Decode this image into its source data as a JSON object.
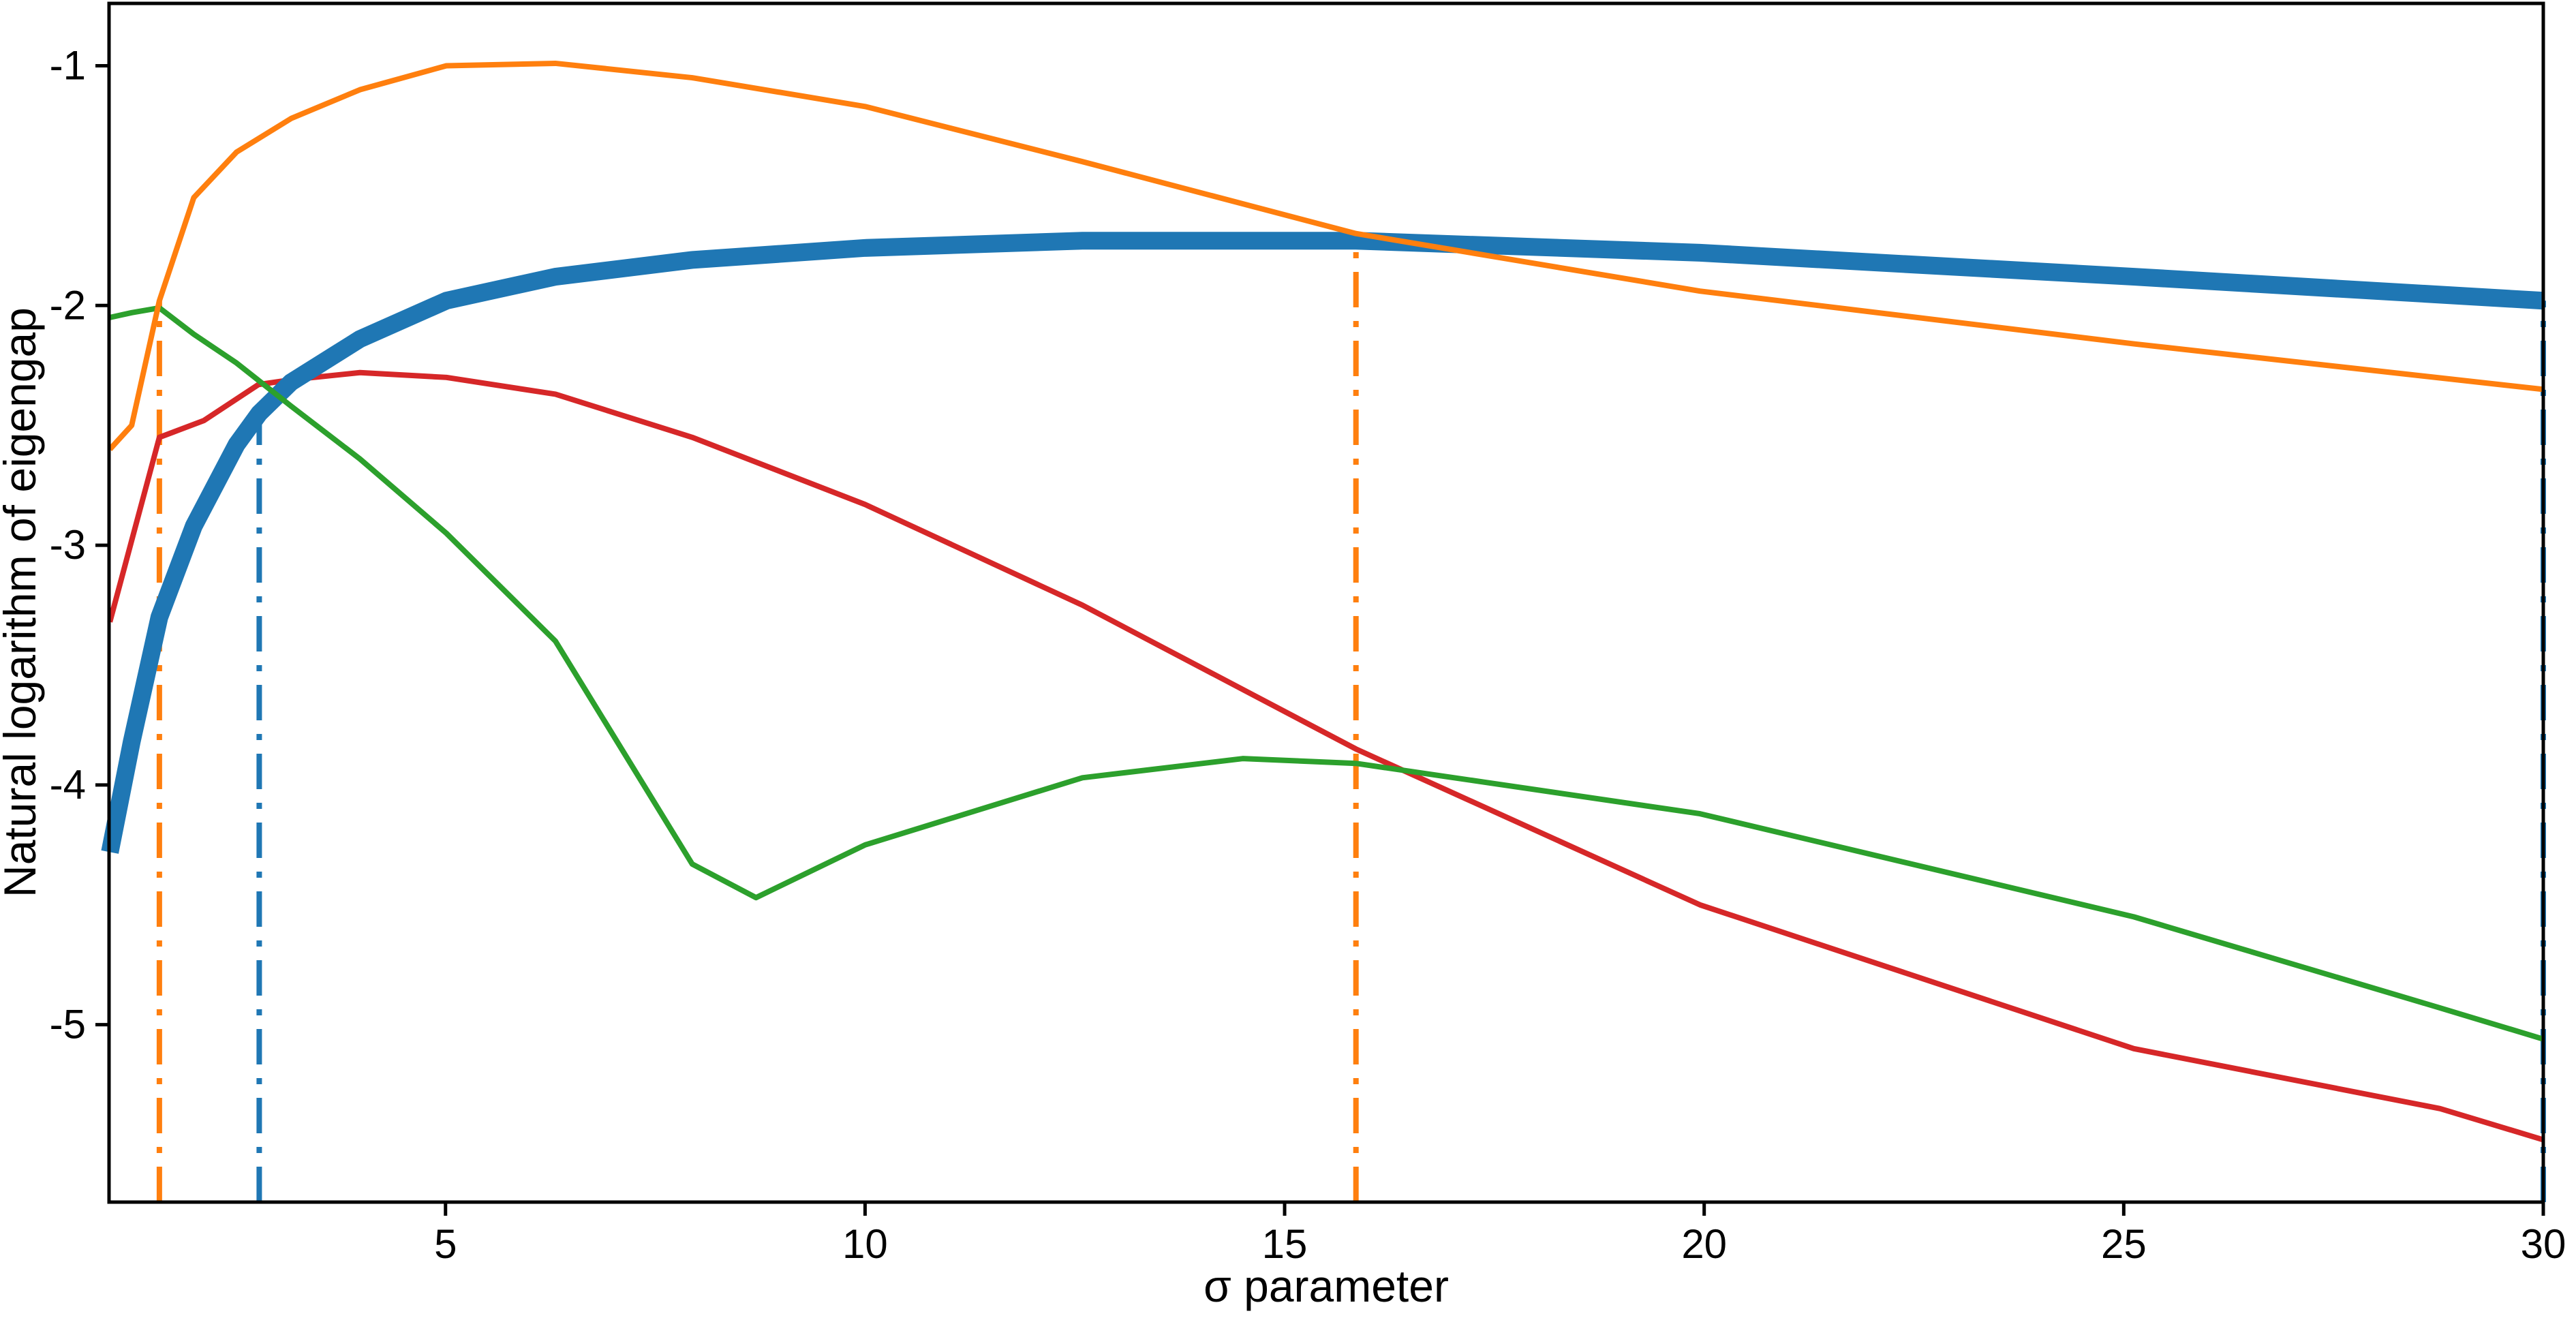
{
  "figure": {
    "background": "#ffffff",
    "spine_color": "#000000"
  },
  "chart_data": {
    "type": "line",
    "title": "",
    "xlabel": "σ parameter",
    "ylabel": "Natural logarithm of eigengap",
    "xlim": [
      0.99,
      30
    ],
    "ylim": [
      -5.74,
      -0.74
    ],
    "xticks": [
      5,
      10,
      15,
      20,
      25,
      30
    ],
    "yticks": [
      -1,
      -2,
      -3,
      -4,
      -5
    ],
    "xtick_labels": [
      "5",
      "10",
      "15",
      "20",
      "25",
      "30"
    ],
    "ytick_labels": [
      "-1",
      "-2",
      "-3",
      "-4",
      "-5"
    ],
    "grid": false,
    "legend_position": "none",
    "series": [
      {
        "name": "eigengap-curve-red",
        "color": "#d62728",
        "linewidth": 8,
        "points": [
          [
            1,
            -3.32
          ],
          [
            1.26,
            -2.98
          ],
          [
            1.59,
            -2.55
          ],
          [
            2.12,
            -2.48
          ],
          [
            2.77,
            -2.33
          ],
          [
            3.16,
            -2.31
          ],
          [
            3.98,
            -2.28
          ],
          [
            5.01,
            -2.3
          ],
          [
            6.31,
            -2.37
          ],
          [
            7.94,
            -2.55
          ],
          [
            10,
            -2.83
          ],
          [
            12.59,
            -3.25
          ],
          [
            15.85,
            -3.85
          ],
          [
            19.95,
            -4.5
          ],
          [
            25.12,
            -5.1
          ],
          [
            28.77,
            -5.35
          ],
          [
            30,
            -5.48
          ]
        ]
      },
      {
        "name": "eigengap-curve-blue-thick",
        "color": "#1f77b4",
        "linewidth": 26,
        "points": [
          [
            1,
            -4.28
          ],
          [
            1.26,
            -3.82
          ],
          [
            1.59,
            -3.3
          ],
          [
            2,
            -2.92
          ],
          [
            2.51,
            -2.58
          ],
          [
            2.78,
            -2.45
          ],
          [
            3.16,
            -2.32
          ],
          [
            3.98,
            -2.14
          ],
          [
            5.01,
            -1.98
          ],
          [
            6.31,
            -1.88
          ],
          [
            7.94,
            -1.81
          ],
          [
            10,
            -1.76
          ],
          [
            12.59,
            -1.73
          ],
          [
            15.85,
            -1.73
          ],
          [
            19.95,
            -1.78
          ],
          [
            25.12,
            -1.88
          ],
          [
            30,
            -1.98
          ]
        ]
      },
      {
        "name": "eigengap-curve-green",
        "color": "#2ca02c",
        "linewidth": 8,
        "points": [
          [
            1,
            -2.05
          ],
          [
            1.26,
            -2.03
          ],
          [
            1.59,
            -2.01
          ],
          [
            2,
            -2.12
          ],
          [
            2.51,
            -2.24
          ],
          [
            3.16,
            -2.42
          ],
          [
            3.98,
            -2.64
          ],
          [
            5.01,
            -2.95
          ],
          [
            6.31,
            -3.4
          ],
          [
            7.94,
            -4.33
          ],
          [
            8.7,
            -4.47
          ],
          [
            10,
            -4.25
          ],
          [
            12.59,
            -3.97
          ],
          [
            14.5,
            -3.89
          ],
          [
            15.85,
            -3.91
          ],
          [
            19.95,
            -4.12
          ],
          [
            25.12,
            -4.55
          ],
          [
            28.77,
            -4.93
          ],
          [
            30,
            -5.06
          ]
        ]
      },
      {
        "name": "eigengap-curve-orange",
        "color": "#ff7f0e",
        "linewidth": 8,
        "points": [
          [
            1,
            -2.6
          ],
          [
            1.26,
            -2.5
          ],
          [
            1.59,
            -1.98
          ],
          [
            2,
            -1.55
          ],
          [
            2.51,
            -1.36
          ],
          [
            3.16,
            -1.22
          ],
          [
            3.98,
            -1.1
          ],
          [
            5.01,
            -1.0
          ],
          [
            6.31,
            -0.99
          ],
          [
            7.94,
            -1.05
          ],
          [
            10,
            -1.17
          ],
          [
            12.59,
            -1.4
          ],
          [
            15.85,
            -1.7
          ],
          [
            19.95,
            -1.94
          ],
          [
            25.12,
            -2.16
          ],
          [
            30,
            -2.35
          ]
        ]
      }
    ],
    "vlines": [
      {
        "name": "vline-orange-left",
        "x": 1.59,
        "color": "#ff7f0e",
        "style": "dashdot",
        "y_bottom": -5.74,
        "y_top": -1.98,
        "linewidth": 8
      },
      {
        "name": "vline-blue-left",
        "x": 2.78,
        "color": "#1f77b4",
        "style": "dashdot",
        "y_bottom": -5.74,
        "y_top": -2.45,
        "linewidth": 8
      },
      {
        "name": "vline-orange-right",
        "x": 15.85,
        "color": "#ff7f0e",
        "style": "dashdot",
        "y_bottom": -5.74,
        "y_top": -1.7,
        "linewidth": 8
      },
      {
        "name": "vline-blue-right",
        "x": 30.0,
        "color": "#1f77b4",
        "style": "dashdot",
        "y_bottom": -5.74,
        "y_top": -1.98,
        "linewidth": 8
      }
    ]
  }
}
